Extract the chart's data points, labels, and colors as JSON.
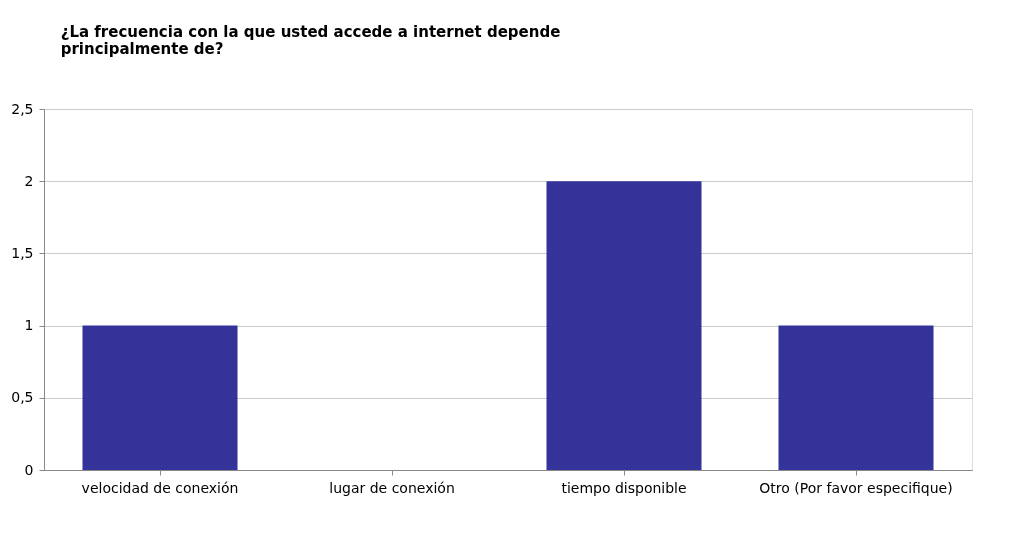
{
  "chart_data": {
    "type": "bar",
    "title": "¿La frecuencia con la que usted accede a internet depende\nprincipalmente de?",
    "categories": [
      "velocidad de conexión",
      "lugar de conexión",
      "tiempo disponible",
      "Otro (Por favor especifique)"
    ],
    "values": [
      1,
      0,
      2,
      1
    ],
    "color": "#333399",
    "ylim": [
      0,
      2.5
    ],
    "yticks": [
      0,
      {
        "value": 0.5,
        "label": "0,5"
      },
      1,
      {
        "value": 1.5,
        "label": "1,5"
      },
      2,
      {
        "value": 2.5,
        "label": "2,5"
      }
    ],
    "grid": "y"
  }
}
